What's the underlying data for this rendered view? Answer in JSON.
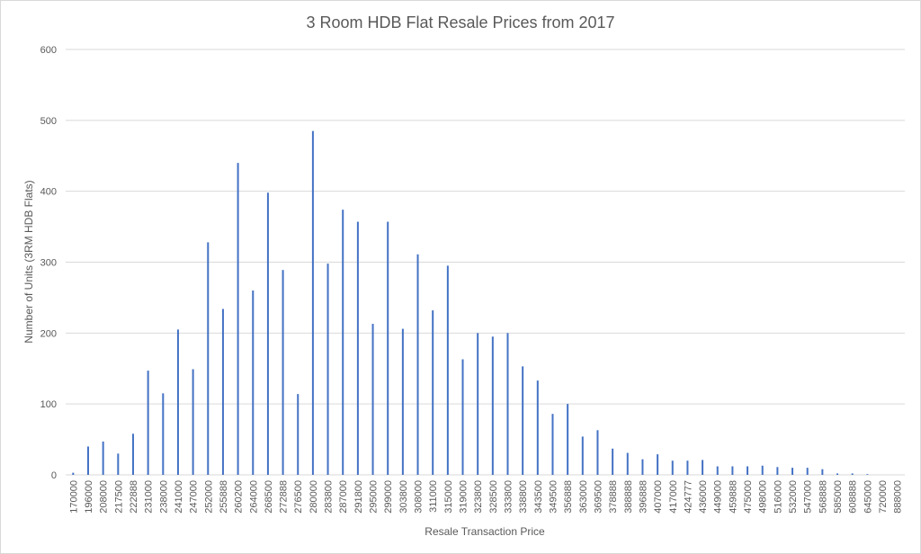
{
  "chart_data": {
    "type": "bar",
    "title": "3 Room HDB Flat Resale Prices from 2017",
    "xlabel": "Resale Transaction Price",
    "ylabel": "Number of Units (3RM HDB Flats)",
    "ylim": [
      0,
      600
    ],
    "yticks": [
      "0",
      "100",
      "200",
      "300",
      "400",
      "500",
      "600"
    ],
    "grid": true,
    "legend": "none",
    "bar_color": "#4472c4",
    "categories": [
      "170000",
      "196000",
      "208000",
      "217500",
      "222888",
      "231000",
      "238000",
      "241000",
      "247000",
      "252000",
      "255888",
      "260200",
      "264000",
      "268500",
      "272888",
      "276500",
      "280000",
      "283800",
      "287000",
      "291800",
      "295000",
      "299000",
      "303800",
      "308000",
      "311000",
      "315000",
      "319000",
      "323800",
      "328500",
      "333800",
      "338800",
      "343500",
      "349500",
      "356888",
      "363000",
      "369500",
      "378888",
      "388888",
      "396888",
      "407000",
      "417000",
      "424777",
      "436000",
      "449000",
      "459888",
      "475000",
      "498000",
      "516000",
      "532000",
      "547000",
      "568888",
      "585000",
      "608888",
      "645000",
      "720000",
      "888000"
    ],
    "values": [
      3,
      40,
      47,
      30,
      58,
      147,
      115,
      205,
      149,
      328,
      234,
      440,
      260,
      398,
      289,
      114,
      485,
      298,
      374,
      357,
      213,
      357,
      206,
      311,
      232,
      295,
      163,
      200,
      195,
      200,
      153,
      133,
      86,
      100,
      54,
      63,
      37,
      31,
      22,
      29,
      20,
      20,
      21,
      12,
      12,
      12,
      13,
      11,
      10,
      10,
      8,
      2,
      2,
      1,
      0,
      0
    ]
  }
}
